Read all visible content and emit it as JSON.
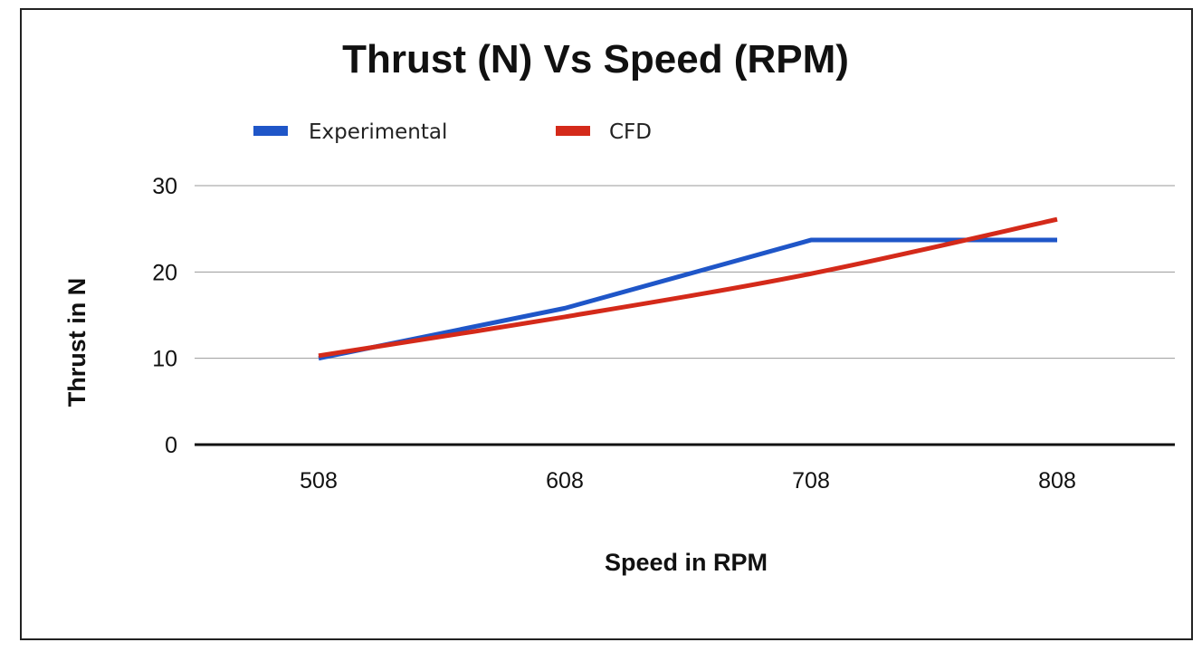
{
  "chart_data": {
    "type": "line",
    "title": "Thrust (N) Vs Speed (RPM)",
    "xlabel": "Speed in RPM",
    "ylabel": "Thrust in N",
    "categories": [
      "508",
      "608",
      "708",
      "808"
    ],
    "ylim": [
      0,
      30
    ],
    "yticks": [
      "0",
      "10",
      "20",
      "30"
    ],
    "grid": true,
    "legend": "top-left",
    "series": [
      {
        "name": "Experimental",
        "color": "#1f56c8",
        "values": [
          10,
          15.8,
          23.7,
          23.7
        ]
      },
      {
        "name": "CFD",
        "color": "#d42a1a",
        "values": [
          10.3,
          14.8,
          19.8,
          26.1
        ]
      }
    ]
  }
}
